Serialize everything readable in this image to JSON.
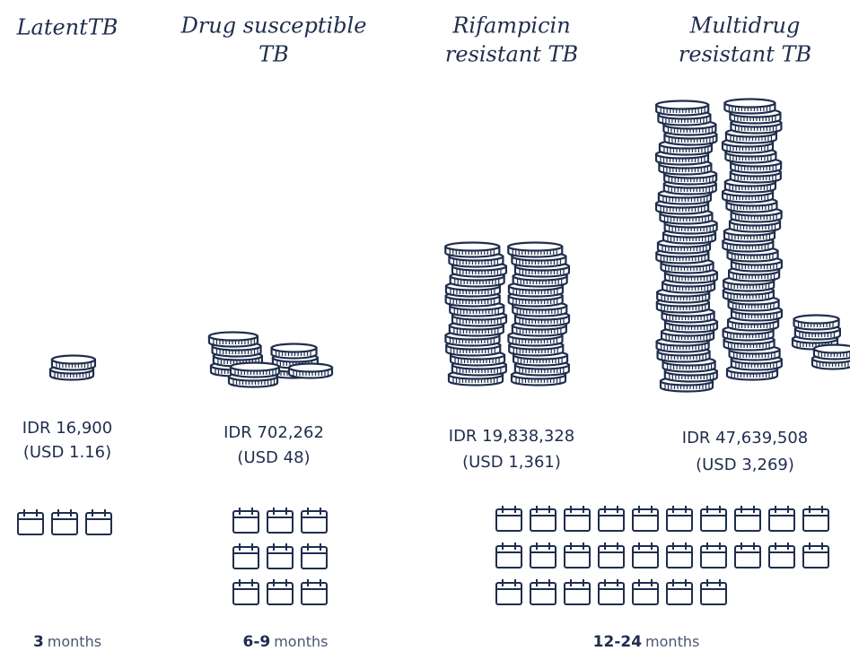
{
  "columns": [
    {
      "title": [
        "LatentTB"
      ],
      "cost_idr": "IDR 16,900",
      "cost_usd": "(USD 1.16)"
    },
    {
      "title": [
        "Drug susceptible",
        "TB"
      ],
      "cost_idr": "IDR 702,262",
      "cost_usd": "(USD 48)"
    },
    {
      "title": [
        "Rifampicin",
        "resistant TB"
      ],
      "cost_idr": "IDR 19,838,328",
      "cost_usd": "(USD 1,361)"
    },
    {
      "title": [
        "Multidrug",
        "resistant TB"
      ],
      "cost_idr": "IDR 47,639,508",
      "cost_usd": "(USD 3,269)"
    }
  ],
  "durations": [
    {
      "number": "3",
      "unit": "months"
    },
    {
      "number": "6-9",
      "unit": "months"
    },
    {
      "number": "12-24",
      "unit": "months"
    }
  ]
}
